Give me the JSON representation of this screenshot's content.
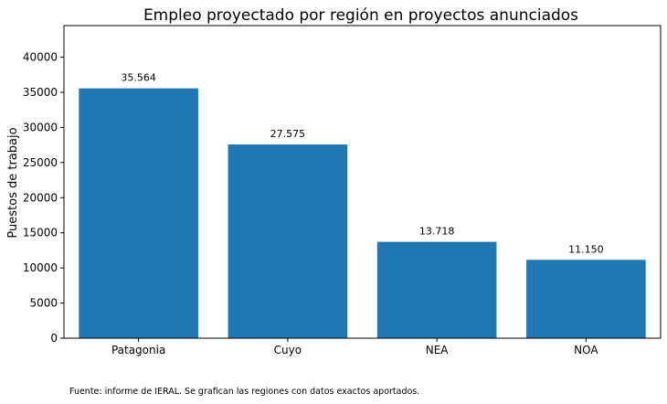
{
  "chart_data": {
    "type": "bar",
    "title": "Empleo proyectado por región en proyectos anunciados",
    "xlabel": "",
    "ylabel": "Puestos de trabajo",
    "categories": [
      "Patagonia",
      "Cuyo",
      "NEA",
      "NOA"
    ],
    "values": [
      35564,
      27575,
      13718,
      11150
    ],
    "value_labels": [
      "35.564",
      "27.575",
      "13.718",
      "11.150"
    ],
    "ylim": [
      0,
      44500
    ],
    "yticks": [
      0,
      5000,
      10000,
      15000,
      20000,
      25000,
      30000,
      35000,
      40000
    ],
    "ytick_labels": [
      "0",
      "5000",
      "10000",
      "15000",
      "20000",
      "25000",
      "30000",
      "35000",
      "40000"
    ],
    "grid": false,
    "bar_color": "#1f77b4"
  },
  "footer": {
    "source": "Fuente: informe de IERAL. Se grafican las regiones con datos exactos aportados."
  }
}
